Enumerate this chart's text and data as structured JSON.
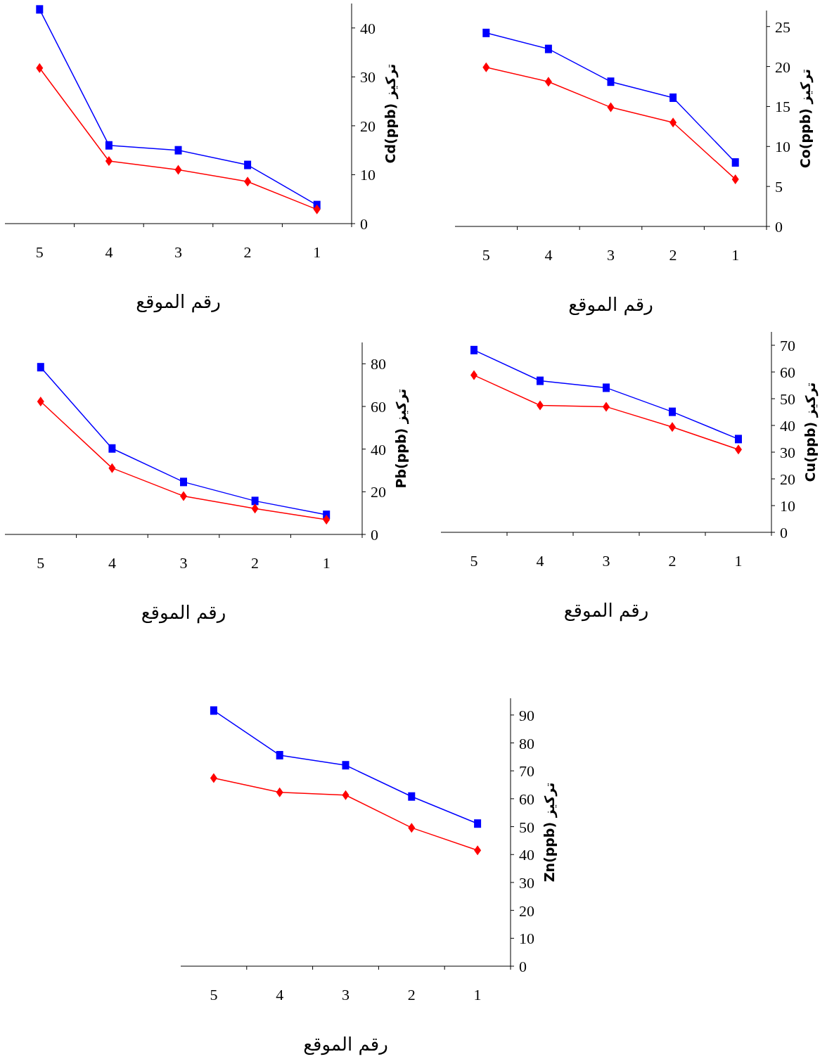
{
  "chart_data": [
    {
      "type": "line",
      "categories": [
        "5",
        "4",
        "3",
        "2",
        "1"
      ],
      "xlabel": "رقم الموقع",
      "ylabel": "Cd(ppb) تركيز",
      "ylim": [
        0,
        45
      ],
      "yticks": [
        0,
        10,
        20,
        30,
        40
      ],
      "series": [
        {
          "color": "#0000ff",
          "marker": "square",
          "values": [
            43.8,
            16,
            15,
            12,
            3.8
          ]
        },
        {
          "color": "#ff0000",
          "marker": "diamond",
          "values": [
            31.8,
            12.8,
            11,
            8.6,
            2.9
          ]
        }
      ]
    },
    {
      "type": "line",
      "categories": [
        "5",
        "4",
        "3",
        "2",
        "1"
      ],
      "xlabel": "رقم الموقع",
      "ylabel": "Co(ppb) تركيز",
      "ylim": [
        0,
        27
      ],
      "yticks": [
        0,
        5,
        10,
        15,
        20,
        25
      ],
      "series": [
        {
          "color": "#0000ff",
          "marker": "square",
          "values": [
            24.2,
            22.2,
            18.1,
            16.1,
            8.0
          ]
        },
        {
          "color": "#ff0000",
          "marker": "diamond",
          "values": [
            19.9,
            18.1,
            14.9,
            13,
            5.9
          ]
        }
      ]
    },
    {
      "type": "line",
      "categories": [
        "5",
        "4",
        "3",
        "2",
        "1"
      ],
      "xlabel": "رقم الموقع",
      "ylabel": "Pb(ppb) تركيز",
      "ylim": [
        0,
        90
      ],
      "yticks": [
        0,
        20,
        40,
        60,
        80
      ],
      "series": [
        {
          "color": "#0000ff",
          "marker": "square",
          "values": [
            78.4,
            40.3,
            24.6,
            15.7,
            9.2
          ]
        },
        {
          "color": "#ff0000",
          "marker": "diamond",
          "values": [
            62.3,
            31.1,
            18,
            12.1,
            6.9
          ]
        }
      ]
    },
    {
      "type": "line",
      "categories": [
        "5",
        "4",
        "3",
        "2",
        "1"
      ],
      "xlabel": "رقم الموقع",
      "ylabel": "Cu(ppb) تركيز",
      "ylim": [
        0,
        75
      ],
      "yticks": [
        0,
        10,
        20,
        30,
        40,
        50,
        60,
        70
      ],
      "series": [
        {
          "color": "#0000ff",
          "marker": "square",
          "values": [
            68.2,
            56.7,
            54.1,
            45.1,
            34.9
          ]
        },
        {
          "color": "#ff0000",
          "marker": "diamond",
          "values": [
            58.8,
            47.5,
            47,
            39.4,
            31
          ]
        }
      ]
    },
    {
      "type": "line",
      "categories": [
        "5",
        "4",
        "3",
        "2",
        "1"
      ],
      "xlabel": "رقم الموقع",
      "ylabel": "Zn(ppb) تركيز",
      "ylim": [
        0,
        96
      ],
      "yticks": [
        0,
        10,
        20,
        30,
        40,
        50,
        60,
        70,
        80,
        90
      ],
      "series": [
        {
          "color": "#0000ff",
          "marker": "square",
          "values": [
            91.6,
            75.6,
            72,
            60.8,
            51.1
          ]
        },
        {
          "color": "#ff0000",
          "marker": "diamond",
          "values": [
            67.4,
            62.3,
            61.3,
            49.6,
            41.5
          ]
        }
      ]
    }
  ]
}
